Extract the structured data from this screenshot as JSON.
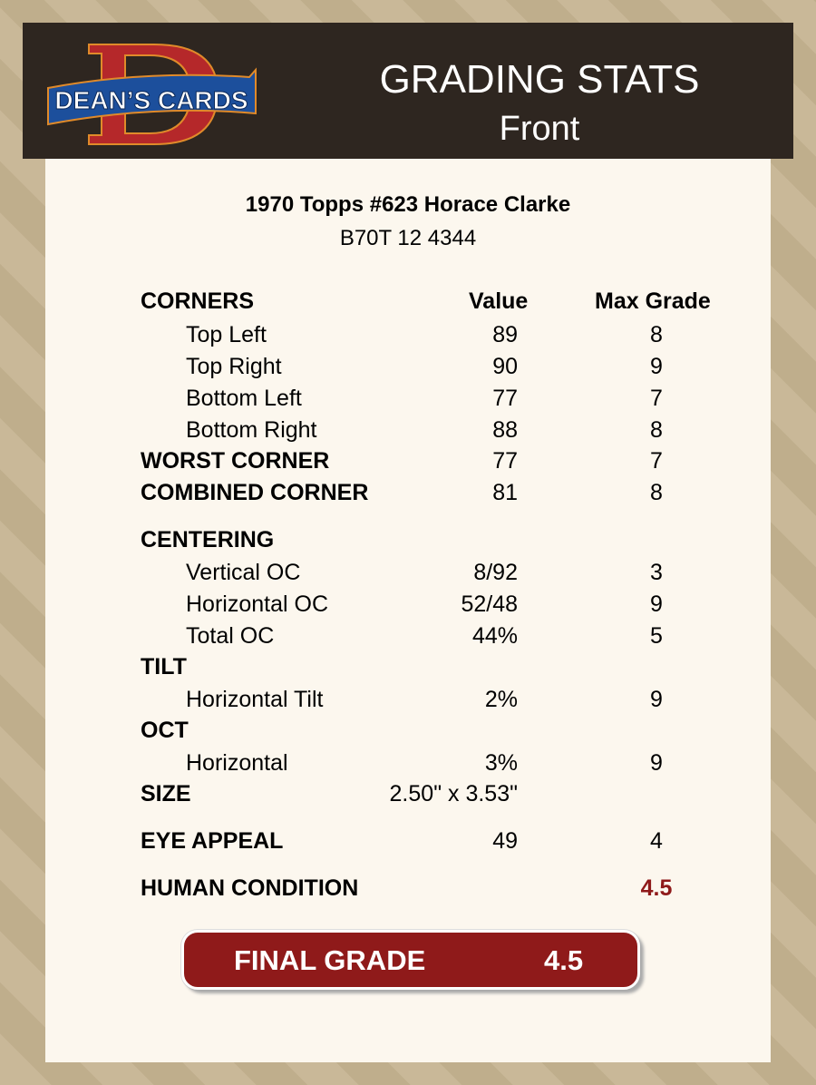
{
  "header": {
    "logo_text": "DEAN'S CARDS",
    "title": "GRADING STATS",
    "subtitle": "Front"
  },
  "card": {
    "name": "1970 Topps #623 Horace Clarke",
    "code": "B70T 12 4344"
  },
  "columns": {
    "label": "CORNERS",
    "value": "Value",
    "max": "Max Grade"
  },
  "rows": [
    {
      "type": "item",
      "label": "Top Left",
      "value": "89",
      "max": "8"
    },
    {
      "type": "item",
      "label": "Top Right",
      "value": "90",
      "max": "9"
    },
    {
      "type": "item",
      "label": "Bottom Left",
      "value": "77",
      "max": "7"
    },
    {
      "type": "item",
      "label": "Bottom Right",
      "value": "88",
      "max": "8"
    },
    {
      "type": "head",
      "label": "WORST CORNER",
      "value": "77",
      "max": "7"
    },
    {
      "type": "head",
      "label": "COMBINED CORNER",
      "value": "81",
      "max": "8"
    },
    {
      "type": "head",
      "label": "CENTERING",
      "value": "",
      "max": ""
    },
    {
      "type": "item",
      "label": "Vertical OC",
      "value": "8/92",
      "max": "3"
    },
    {
      "type": "item",
      "label": "Horizontal OC",
      "value": "52/48",
      "max": "9"
    },
    {
      "type": "item",
      "label": "Total OC",
      "value": "44%",
      "max": "5"
    },
    {
      "type": "head",
      "label": "TILT",
      "value": "",
      "max": ""
    },
    {
      "type": "item",
      "label": "Horizontal Tilt",
      "value": "2%",
      "max": "9"
    },
    {
      "type": "head",
      "label": "OCT",
      "value": "",
      "max": ""
    },
    {
      "type": "item",
      "label": "Horizontal",
      "value": "3%",
      "max": "9"
    },
    {
      "type": "head",
      "label": "SIZE",
      "value": "2.50\" x 3.53\"",
      "max": ""
    },
    {
      "type": "head",
      "label": "EYE APPEAL",
      "value": "49",
      "max": "4"
    },
    {
      "type": "head",
      "label": "HUMAN CONDITION",
      "value": "",
      "max": "4.5",
      "highlight": true
    }
  ],
  "final": {
    "label": "FINAL GRADE",
    "value": "4.5"
  },
  "colors": {
    "header_bg": "#2e2620",
    "panel_bg": "#fcf7ee",
    "accent_red": "#8f1a1a"
  }
}
